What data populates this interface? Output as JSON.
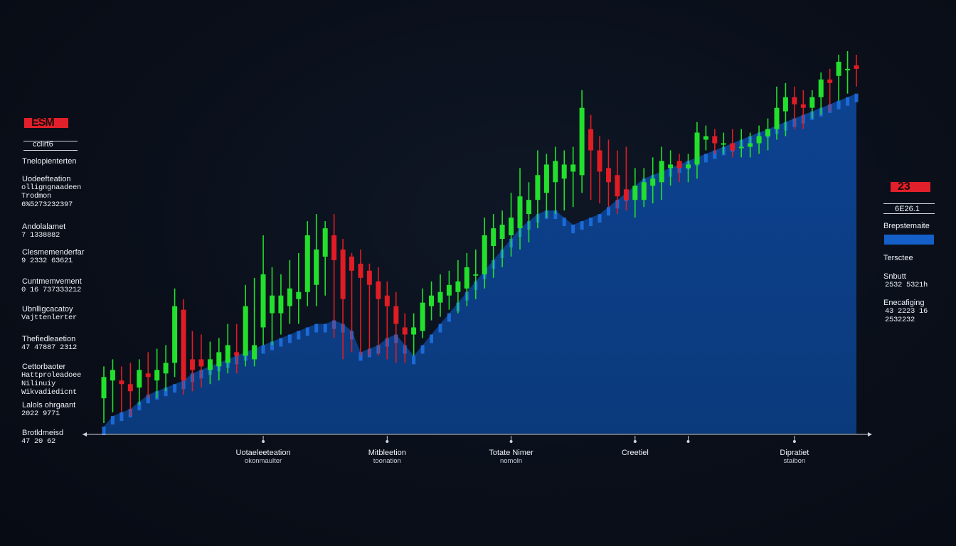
{
  "left_panel": {
    "badge": "ESM",
    "header": "cclirt6",
    "entries": [
      {
        "title": "Tnelopienterten",
        "lines": []
      },
      {
        "title": "Uodeefteation",
        "lines": [
          "olligngnaadeen",
          "Trodmon",
          "6%5273232397"
        ]
      },
      {
        "title": "Andolalamet",
        "lines": [
          "7 1338882"
        ]
      },
      {
        "title": "Clesmemenderfar",
        "lines": [
          "9 2332 63621"
        ]
      },
      {
        "title": "Cuntmemvement",
        "lines": [
          "0 16 737333212"
        ]
      },
      {
        "title": "Ubnlligcacatoy",
        "lines": [
          "Vajttenlerter"
        ]
      },
      {
        "title": "Thefiedleaetion",
        "lines": [
          "47 47887 2312"
        ]
      },
      {
        "title": "Cettorbaoter",
        "lines": [
          "Hattproleadoee",
          "Nilinuiy",
          "Wikvadiedicnt"
        ]
      },
      {
        "title": "Lalols ohrgaant",
        "lines": [
          "2022 9771"
        ]
      },
      {
        "title": "Brotldmeisd",
        "lines": [
          "47 20 62"
        ]
      }
    ]
  },
  "right_panel": {
    "badge": "23",
    "header": "6E26.1",
    "entries": [
      {
        "title": "Brepstemaite",
        "lines": []
      },
      {
        "title": "Tersctee",
        "lines": []
      },
      {
        "title": "Snbutt",
        "lines": [
          "2532 5321h"
        ]
      },
      {
        "title": "Enecafiging",
        "lines": [
          "43 2223 16",
          "2532232"
        ]
      }
    ]
  },
  "x_labels": [
    {
      "line1": "Uotaeleeteation",
      "line2": "okonmaulter"
    },
    {
      "line1": "Mitbleetion",
      "line2": "toonation"
    },
    {
      "line1": "Totate Nimer",
      "line2": "nomoln"
    },
    {
      "line1": "Creetiel",
      "line2": ""
    },
    {
      "line1": "",
      "line2": ""
    },
    {
      "line1": "Dipratiet",
      "line2": "staibon"
    }
  ],
  "colors": {
    "up": "#22e02c",
    "down": "#e01c24",
    "area": "#0b3a7c",
    "area_bar": "#1e6fe0",
    "axis": "#cfd6e0"
  },
  "chart_data": {
    "type": "area",
    "candles": [
      {
        "o": 10,
        "c": 16,
        "h": 19,
        "l": 3
      },
      {
        "o": 15,
        "c": 18,
        "h": 21,
        "l": 6
      },
      {
        "o": 15,
        "c": 14,
        "h": 19,
        "l": 6
      },
      {
        "o": 14,
        "c": 12,
        "h": 20,
        "l": 5
      },
      {
        "o": 13,
        "c": 18,
        "h": 21,
        "l": 8
      },
      {
        "o": 17,
        "c": 16,
        "h": 23,
        "l": 10
      },
      {
        "o": 15,
        "c": 18,
        "h": 24,
        "l": 10
      },
      {
        "o": 17,
        "c": 20,
        "h": 25,
        "l": 12
      },
      {
        "o": 20,
        "c": 36,
        "h": 41,
        "l": 16
      },
      {
        "o": 35,
        "c": 15,
        "h": 38,
        "l": 11
      },
      {
        "o": 21,
        "c": 18,
        "h": 29,
        "l": 12
      },
      {
        "o": 21,
        "c": 19,
        "h": 28,
        "l": 13
      },
      {
        "o": 18,
        "c": 21,
        "h": 26,
        "l": 14
      },
      {
        "o": 19,
        "c": 23,
        "h": 27,
        "l": 15
      },
      {
        "o": 20,
        "c": 25,
        "h": 31,
        "l": 17
      },
      {
        "o": 23,
        "c": 22,
        "h": 31,
        "l": 17
      },
      {
        "o": 22,
        "c": 36,
        "h": 42,
        "l": 19
      },
      {
        "o": 21,
        "c": 25,
        "h": 44,
        "l": 19
      },
      {
        "o": 30,
        "c": 45,
        "h": 56,
        "l": 25
      },
      {
        "o": 34,
        "c": 39,
        "h": 47,
        "l": 25
      },
      {
        "o": 34,
        "c": 39,
        "h": 45,
        "l": 28
      },
      {
        "o": 36,
        "c": 41,
        "h": 49,
        "l": 31
      },
      {
        "o": 38,
        "c": 40,
        "h": 51,
        "l": 31
      },
      {
        "o": 40,
        "c": 56,
        "h": 60,
        "l": 36
      },
      {
        "o": 42,
        "c": 52,
        "h": 62,
        "l": 36
      },
      {
        "o": 50,
        "c": 58,
        "h": 60,
        "l": 39
      },
      {
        "o": 56,
        "c": 49,
        "h": 62,
        "l": 27
      },
      {
        "o": 52,
        "c": 38,
        "h": 55,
        "l": 21
      },
      {
        "o": 50,
        "c": 46,
        "h": 51,
        "l": 23
      },
      {
        "o": 48,
        "c": 44,
        "h": 52,
        "l": 22
      },
      {
        "o": 46,
        "c": 42,
        "h": 48,
        "l": 22
      },
      {
        "o": 43,
        "c": 38,
        "h": 47,
        "l": 22
      },
      {
        "o": 39,
        "c": 36,
        "h": 43,
        "l": 21
      },
      {
        "o": 36,
        "c": 31,
        "h": 40,
        "l": 20
      },
      {
        "o": 30,
        "c": 28,
        "h": 34,
        "l": 20
      },
      {
        "o": 28,
        "c": 30,
        "h": 34,
        "l": 22
      },
      {
        "o": 29,
        "c": 37,
        "h": 41,
        "l": 27
      },
      {
        "o": 36,
        "c": 39,
        "h": 43,
        "l": 32
      },
      {
        "o": 37,
        "c": 40,
        "h": 45,
        "l": 33
      },
      {
        "o": 39,
        "c": 42,
        "h": 46,
        "l": 35
      },
      {
        "o": 40,
        "c": 43,
        "h": 49,
        "l": 34
      },
      {
        "o": 41,
        "c": 47,
        "h": 51,
        "l": 36
      },
      {
        "o": 45,
        "c": 45,
        "h": 52,
        "l": 38
      },
      {
        "o": 45,
        "c": 56,
        "h": 61,
        "l": 41
      },
      {
        "o": 53,
        "c": 58,
        "h": 62,
        "l": 44
      },
      {
        "o": 55,
        "c": 59,
        "h": 63,
        "l": 47
      },
      {
        "o": 56,
        "c": 61,
        "h": 68,
        "l": 50
      },
      {
        "o": 58,
        "c": 67,
        "h": 75,
        "l": 52
      },
      {
        "o": 62,
        "c": 66,
        "h": 71,
        "l": 54
      },
      {
        "o": 66,
        "c": 73,
        "h": 80,
        "l": 58
      },
      {
        "o": 68,
        "c": 76,
        "h": 79,
        "l": 61
      },
      {
        "o": 71,
        "c": 77,
        "h": 81,
        "l": 62
      },
      {
        "o": 72,
        "c": 76,
        "h": 80,
        "l": 63
      },
      {
        "o": 74,
        "c": 76,
        "h": 81,
        "l": 64
      },
      {
        "o": 73,
        "c": 92,
        "h": 97,
        "l": 68
      },
      {
        "o": 86,
        "c": 80,
        "h": 90,
        "l": 66
      },
      {
        "o": 80,
        "c": 74,
        "h": 84,
        "l": 65
      },
      {
        "o": 75,
        "c": 71,
        "h": 83,
        "l": 64
      },
      {
        "o": 73,
        "c": 67,
        "h": 80,
        "l": 62
      },
      {
        "o": 69,
        "c": 66,
        "h": 81,
        "l": 63
      },
      {
        "o": 66,
        "c": 70,
        "h": 75,
        "l": 61
      },
      {
        "o": 66,
        "c": 71,
        "h": 75,
        "l": 64
      },
      {
        "o": 70,
        "c": 72,
        "h": 78,
        "l": 65
      },
      {
        "o": 71,
        "c": 77,
        "h": 81,
        "l": 66
      },
      {
        "o": 75,
        "c": 76,
        "h": 80,
        "l": 70
      },
      {
        "o": 77,
        "c": 75,
        "h": 79,
        "l": 71
      },
      {
        "o": 75,
        "c": 76,
        "h": 79,
        "l": 71
      },
      {
        "o": 76,
        "c": 85,
        "h": 88,
        "l": 72
      },
      {
        "o": 83,
        "c": 84,
        "h": 87,
        "l": 80
      },
      {
        "o": 84,
        "c": 82,
        "h": 86,
        "l": 79
      },
      {
        "o": 82,
        "c": 82,
        "h": 85,
        "l": 79
      },
      {
        "o": 82,
        "c": 80,
        "h": 86,
        "l": 78
      },
      {
        "o": 81,
        "c": 81,
        "h": 86,
        "l": 78
      },
      {
        "o": 81,
        "c": 82,
        "h": 85,
        "l": 78
      },
      {
        "o": 82,
        "c": 84,
        "h": 87,
        "l": 79
      },
      {
        "o": 84,
        "c": 86,
        "h": 89,
        "l": 80
      },
      {
        "o": 86,
        "c": 92,
        "h": 98,
        "l": 83
      },
      {
        "o": 91,
        "c": 95,
        "h": 99,
        "l": 84
      },
      {
        "o": 95,
        "c": 93,
        "h": 98,
        "l": 86
      },
      {
        "o": 93,
        "c": 92,
        "h": 97,
        "l": 86
      },
      {
        "o": 92,
        "c": 95,
        "h": 97,
        "l": 89
      },
      {
        "o": 95,
        "c": 100,
        "h": 102,
        "l": 90
      },
      {
        "o": 100,
        "c": 99,
        "h": 103,
        "l": 91
      },
      {
        "o": 101,
        "c": 105,
        "h": 107,
        "l": 94
      },
      {
        "o": 103,
        "c": 103,
        "h": 108,
        "l": 96
      },
      {
        "o": 104,
        "c": 103,
        "h": 107,
        "l": 98
      }
    ],
    "area": [
      2,
      5,
      6,
      7,
      9,
      11,
      12,
      13,
      14,
      15,
      17,
      18,
      19,
      20,
      21,
      22,
      23,
      24,
      25,
      26,
      27,
      28,
      29,
      30,
      31,
      31,
      32,
      31,
      29,
      23,
      24,
      25,
      27,
      28,
      25,
      22,
      25,
      28,
      31,
      34,
      37,
      40,
      43,
      46,
      49,
      52,
      55,
      58,
      60,
      62,
      63,
      63,
      61,
      59,
      60,
      61,
      62,
      64,
      66,
      68,
      70,
      72,
      73,
      74,
      75,
      76,
      77,
      78,
      79,
      80,
      81,
      82,
      83,
      84,
      85,
      86,
      87,
      88,
      89,
      90,
      91,
      92,
      93,
      94,
      95,
      96
    ],
    "x_label_positions": [
      18,
      32,
      46,
      60,
      66,
      78
    ],
    "ylim": [
      0,
      110
    ],
    "grid": false,
    "legend": "none"
  }
}
